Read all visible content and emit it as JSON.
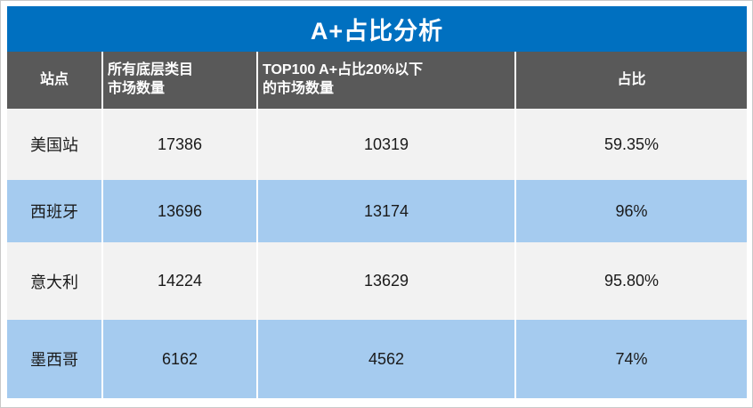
{
  "title": "A+占比分析",
  "colors": {
    "title_bg": "#0070C0",
    "title_text": "#FFFFFF",
    "header_bg": "#595959",
    "header_text": "#FFFFFF",
    "row_light_bg": "#F2F2F2",
    "row_blue_bg": "#A5CBEF",
    "body_text": "#1A1A1A"
  },
  "table": {
    "headers": {
      "site": "站点",
      "total_markets": "所有底层类目\n市场数量",
      "low_aplus_markets": "TOP100 A+占比20%以下\n的市场数量",
      "ratio": "占比"
    },
    "rows": [
      {
        "site": "美国站",
        "total_markets": "17386",
        "low_aplus_markets": "10319",
        "ratio": "59.35%"
      },
      {
        "site": "西班牙",
        "total_markets": "13696",
        "low_aplus_markets": "13174",
        "ratio": "96%"
      },
      {
        "site": "意大利",
        "total_markets": "14224",
        "low_aplus_markets": "13629",
        "ratio": "95.80%"
      },
      {
        "site": "墨西哥",
        "total_markets": "6162",
        "low_aplus_markets": "4562",
        "ratio": "74%"
      }
    ]
  },
  "chart_data": {
    "type": "table",
    "title": "A+占比分析",
    "columns": [
      "站点",
      "所有底层类目市场数量",
      "TOP100 A+占比20%以下的市场数量",
      "占比"
    ],
    "rows": [
      [
        "美国站",
        17386,
        10319,
        "59.35%"
      ],
      [
        "西班牙",
        13696,
        13174,
        "96%"
      ],
      [
        "意大利",
        14224,
        13629,
        "95.80%"
      ],
      [
        "墨西哥",
        6162,
        4562,
        "74%"
      ]
    ]
  }
}
